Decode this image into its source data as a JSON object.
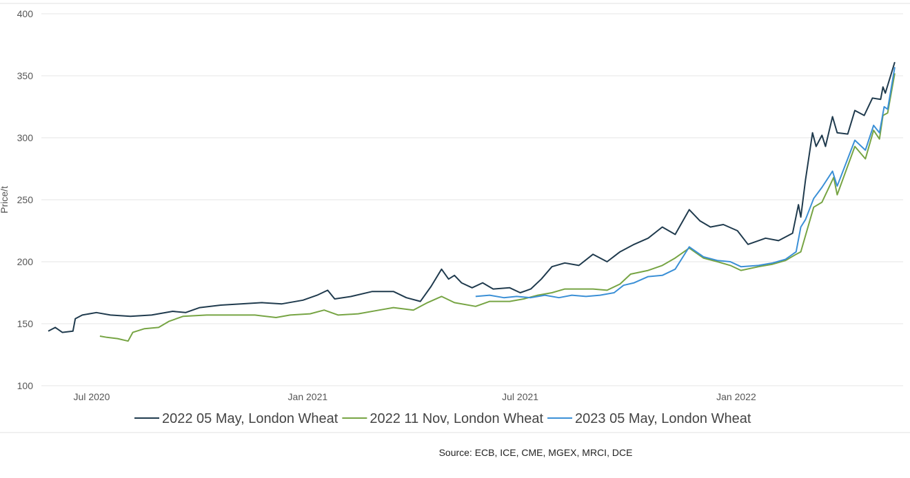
{
  "chart_data": {
    "type": "line",
    "title": "",
    "xlabel": "",
    "ylabel": "Price/t",
    "ylim": [
      100,
      400
    ],
    "yticks": [
      "100",
      "150",
      "200",
      "250",
      "300",
      "350",
      "400"
    ],
    "xticks": [
      {
        "label": "Jul 2020",
        "date": "2020-07-01"
      },
      {
        "label": "Jan 2021",
        "date": "2021-01-01"
      },
      {
        "label": "Jul 2021",
        "date": "2021-07-01"
      },
      {
        "label": "Jan 2022",
        "date": "2022-01-01"
      }
    ],
    "grid": true,
    "legend_position": "bottom",
    "source": "Source: ECB, ICE, CME, MGEX, MRCI, DCE",
    "series": [
      {
        "name": "2022 05 May, London Wheat",
        "color": "#1f3a4d",
        "points": [
          [
            "2020-05-25",
            144
          ],
          [
            "2020-05-31",
            147
          ],
          [
            "2020-06-06",
            143
          ],
          [
            "2020-06-15",
            144
          ],
          [
            "2020-06-17",
            154
          ],
          [
            "2020-06-23",
            157
          ],
          [
            "2020-07-05",
            159
          ],
          [
            "2020-07-17",
            157
          ],
          [
            "2020-08-03",
            156
          ],
          [
            "2020-08-21",
            157
          ],
          [
            "2020-09-08",
            160
          ],
          [
            "2020-09-19",
            159
          ],
          [
            "2020-10-01",
            163
          ],
          [
            "2020-10-19",
            165
          ],
          [
            "2020-11-05",
            166
          ],
          [
            "2020-11-23",
            167
          ],
          [
            "2020-12-10",
            166
          ],
          [
            "2020-12-28",
            169
          ],
          [
            "2021-01-09",
            173
          ],
          [
            "2021-01-18",
            177
          ],
          [
            "2021-01-24",
            170
          ],
          [
            "2021-02-07",
            172
          ],
          [
            "2021-02-25",
            176
          ],
          [
            "2021-03-15",
            176
          ],
          [
            "2021-03-26",
            171
          ],
          [
            "2021-04-07",
            168
          ],
          [
            "2021-04-16",
            180
          ],
          [
            "2021-04-25",
            194
          ],
          [
            "2021-05-01",
            186
          ],
          [
            "2021-05-06",
            189
          ],
          [
            "2021-05-12",
            183
          ],
          [
            "2021-05-21",
            179
          ],
          [
            "2021-05-30",
            183
          ],
          [
            "2021-06-08",
            178
          ],
          [
            "2021-06-22",
            179
          ],
          [
            "2021-07-01",
            175
          ],
          [
            "2021-07-10",
            178
          ],
          [
            "2021-07-19",
            186
          ],
          [
            "2021-07-28",
            196
          ],
          [
            "2021-08-08",
            199
          ],
          [
            "2021-08-20",
            197
          ],
          [
            "2021-09-01",
            206
          ],
          [
            "2021-09-13",
            200
          ],
          [
            "2021-09-24",
            208
          ],
          [
            "2021-10-06",
            214
          ],
          [
            "2021-10-18",
            219
          ],
          [
            "2021-10-30",
            228
          ],
          [
            "2021-11-10",
            222
          ],
          [
            "2021-11-22",
            242
          ],
          [
            "2021-12-01",
            233
          ],
          [
            "2021-12-10",
            228
          ],
          [
            "2021-12-21",
            230
          ],
          [
            "2022-01-02",
            225
          ],
          [
            "2022-01-11",
            214
          ],
          [
            "2022-01-20",
            217
          ],
          [
            "2022-01-26",
            219
          ],
          [
            "2022-02-06",
            217
          ],
          [
            "2022-02-18",
            223
          ],
          [
            "2022-02-23",
            246
          ],
          [
            "2022-02-25",
            236
          ],
          [
            "2022-03-01",
            266
          ],
          [
            "2022-03-07",
            304
          ],
          [
            "2022-03-10",
            293
          ],
          [
            "2022-03-15",
            302
          ],
          [
            "2022-03-18",
            293
          ],
          [
            "2022-03-24",
            317
          ],
          [
            "2022-03-28",
            304
          ],
          [
            "2022-04-06",
            303
          ],
          [
            "2022-04-12",
            322
          ],
          [
            "2022-04-20",
            318
          ],
          [
            "2022-04-27",
            332
          ],
          [
            "2022-05-04",
            331
          ],
          [
            "2022-05-06",
            341
          ],
          [
            "2022-05-08",
            336
          ],
          [
            "2022-05-16",
            361
          ]
        ]
      },
      {
        "name": "2022 11 Nov, London Wheat",
        "color": "#76a443",
        "points": [
          [
            "2020-07-08",
            140
          ],
          [
            "2020-07-14",
            139
          ],
          [
            "2020-07-23",
            138
          ],
          [
            "2020-08-01",
            136
          ],
          [
            "2020-08-05",
            143
          ],
          [
            "2020-08-15",
            146
          ],
          [
            "2020-08-27",
            147
          ],
          [
            "2020-09-05",
            152
          ],
          [
            "2020-09-17",
            156
          ],
          [
            "2020-10-07",
            157
          ],
          [
            "2020-10-31",
            157
          ],
          [
            "2020-11-17",
            157
          ],
          [
            "2020-12-05",
            155
          ],
          [
            "2020-12-17",
            157
          ],
          [
            "2021-01-03",
            158
          ],
          [
            "2021-01-15",
            161
          ],
          [
            "2021-01-27",
            157
          ],
          [
            "2021-02-13",
            158
          ],
          [
            "2021-03-03",
            161
          ],
          [
            "2021-03-15",
            163
          ],
          [
            "2021-04-01",
            161
          ],
          [
            "2021-04-13",
            167
          ],
          [
            "2021-04-25",
            172
          ],
          [
            "2021-05-06",
            167
          ],
          [
            "2021-05-24",
            164
          ],
          [
            "2021-06-05",
            168
          ],
          [
            "2021-06-22",
            168
          ],
          [
            "2021-07-04",
            170
          ],
          [
            "2021-07-16",
            173
          ],
          [
            "2021-07-28",
            175
          ],
          [
            "2021-08-08",
            178
          ],
          [
            "2021-08-20",
            178
          ],
          [
            "2021-09-01",
            178
          ],
          [
            "2021-09-13",
            177
          ],
          [
            "2021-09-24",
            182
          ],
          [
            "2021-10-03",
            190
          ],
          [
            "2021-10-18",
            193
          ],
          [
            "2021-10-30",
            197
          ],
          [
            "2021-11-10",
            203
          ],
          [
            "2021-11-22",
            211
          ],
          [
            "2021-12-04",
            203
          ],
          [
            "2021-12-16",
            200
          ],
          [
            "2021-12-27",
            197
          ],
          [
            "2022-01-05",
            193
          ],
          [
            "2022-01-20",
            196
          ],
          [
            "2022-02-01",
            198
          ],
          [
            "2022-02-12",
            201
          ],
          [
            "2022-02-21",
            206
          ],
          [
            "2022-02-25",
            208
          ],
          [
            "2022-03-08",
            244
          ],
          [
            "2022-03-15",
            248
          ],
          [
            "2022-03-25",
            268
          ],
          [
            "2022-03-28",
            254
          ],
          [
            "2022-04-12",
            293
          ],
          [
            "2022-04-21",
            283
          ],
          [
            "2022-04-28",
            306
          ],
          [
            "2022-05-03",
            299
          ],
          [
            "2022-05-06",
            318
          ],
          [
            "2022-05-10",
            320
          ],
          [
            "2022-05-16",
            352
          ]
        ]
      },
      {
        "name": "2023 05 May, London Wheat",
        "color": "#3a8fd6",
        "points": [
          [
            "2021-05-24",
            172
          ],
          [
            "2021-06-05",
            173
          ],
          [
            "2021-06-17",
            171
          ],
          [
            "2021-06-28",
            172
          ],
          [
            "2021-07-10",
            171
          ],
          [
            "2021-07-22",
            173
          ],
          [
            "2021-08-03",
            171
          ],
          [
            "2021-08-14",
            173
          ],
          [
            "2021-08-26",
            172
          ],
          [
            "2021-09-07",
            173
          ],
          [
            "2021-09-19",
            175
          ],
          [
            "2021-09-27",
            181
          ],
          [
            "2021-10-06",
            183
          ],
          [
            "2021-10-18",
            188
          ],
          [
            "2021-10-30",
            189
          ],
          [
            "2021-11-10",
            194
          ],
          [
            "2021-11-22",
            212
          ],
          [
            "2021-12-04",
            204
          ],
          [
            "2021-12-16",
            201
          ],
          [
            "2021-12-27",
            200
          ],
          [
            "2022-01-05",
            196
          ],
          [
            "2022-01-20",
            197
          ],
          [
            "2022-02-01",
            199
          ],
          [
            "2022-02-12",
            202
          ],
          [
            "2022-02-21",
            208
          ],
          [
            "2022-02-25",
            228
          ],
          [
            "2022-03-01",
            234
          ],
          [
            "2022-03-08",
            251
          ],
          [
            "2022-03-15",
            260
          ],
          [
            "2022-03-24",
            273
          ],
          [
            "2022-03-28",
            261
          ],
          [
            "2022-04-12",
            298
          ],
          [
            "2022-04-21",
            290
          ],
          [
            "2022-04-28",
            310
          ],
          [
            "2022-05-03",
            304
          ],
          [
            "2022-05-07",
            325
          ],
          [
            "2022-05-10",
            323
          ],
          [
            "2022-05-16",
            357
          ]
        ]
      }
    ]
  }
}
